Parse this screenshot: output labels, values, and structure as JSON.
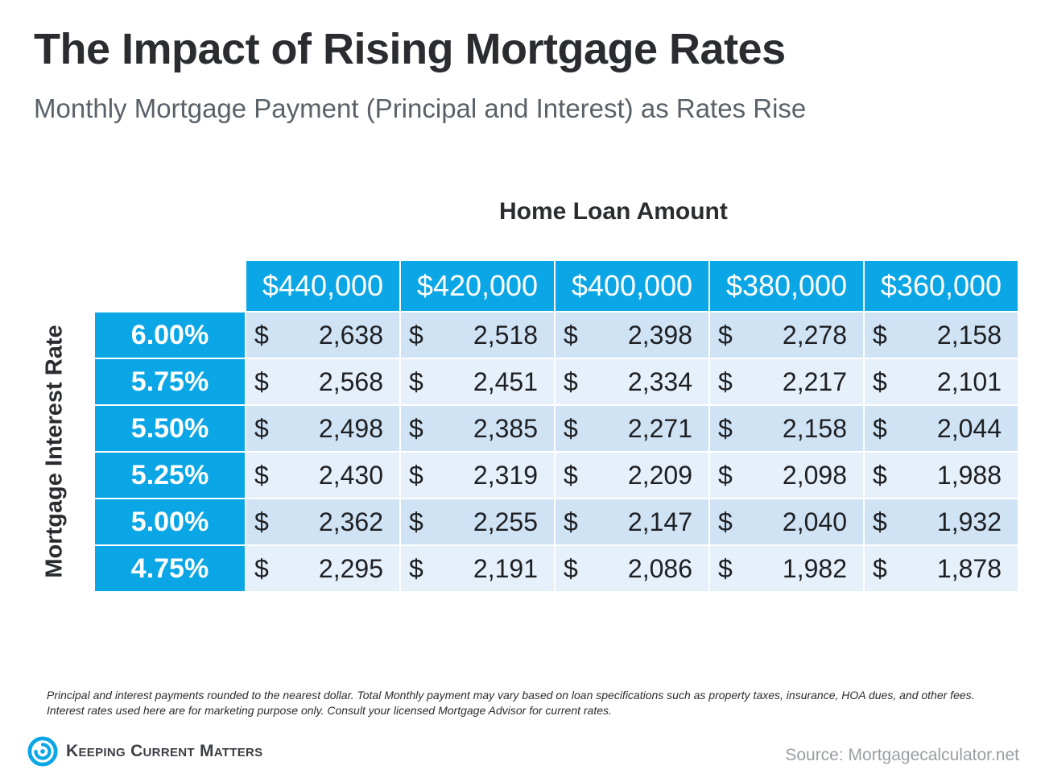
{
  "title": "The Impact of Rising Mortgage Rates",
  "subtitle": "Monthly Mortgage Payment (Principal and Interest) as Rates Rise",
  "column_group_label": "Home Loan Amount",
  "row_axis_label": "Mortgage Interest Rate",
  "currency_symbol": "$",
  "colors": {
    "accent_blue": "#0aa6e6",
    "row_dark": "#cfe3f5",
    "row_light": "#e6f0fa"
  },
  "table": {
    "columns": [
      "$440,000",
      "$420,000",
      "$400,000",
      "$380,000",
      "$360,000"
    ],
    "rows": [
      {
        "rate": "6.00%",
        "values": [
          "2,638",
          "2,518",
          "2,398",
          "2,278",
          "2,158"
        ]
      },
      {
        "rate": "5.75%",
        "values": [
          "2,568",
          "2,451",
          "2,334",
          "2,217",
          "2,101"
        ]
      },
      {
        "rate": "5.50%",
        "values": [
          "2,498",
          "2,385",
          "2,271",
          "2,158",
          "2,044"
        ]
      },
      {
        "rate": "5.25%",
        "values": [
          "2,430",
          "2,319",
          "2,209",
          "2,098",
          "1,988"
        ]
      },
      {
        "rate": "5.00%",
        "values": [
          "2,362",
          "2,255",
          "2,147",
          "2,040",
          "1,932"
        ]
      },
      {
        "rate": "4.75%",
        "values": [
          "2,295",
          "2,191",
          "2,086",
          "1,982",
          "1,878"
        ]
      }
    ]
  },
  "footnote": "Principal and interest payments rounded to the nearest dollar. Total Monthly payment may vary based on loan specifications such as property taxes, insurance, HOA dues, and other fees. Interest rates used here are for marketing purpose only. Consult your licensed Mortgage Advisor for current rates.",
  "logo": {
    "text": "Keeping Current Matters",
    "icon": "kcm-swirl-logo-icon"
  },
  "source": "Source: Mortgagecalculator.net"
}
